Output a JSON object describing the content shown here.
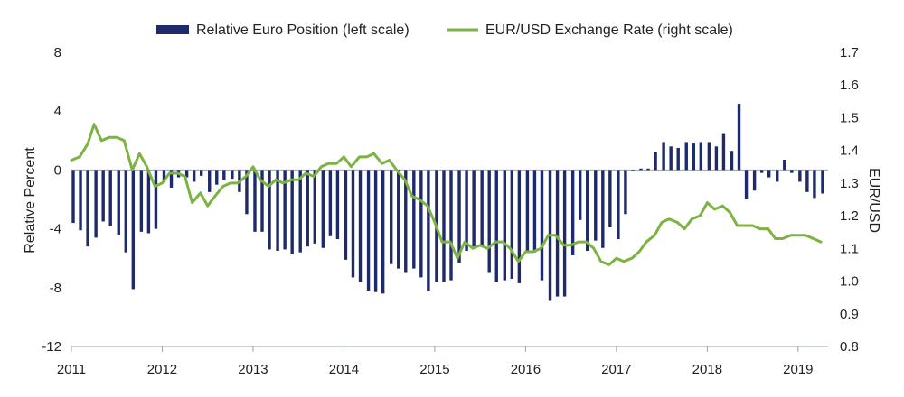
{
  "chart_data": {
    "type": "bar+line",
    "title": "",
    "legend": {
      "placement": "top-center",
      "entries": [
        {
          "label": "Relative Euro Position (left scale)",
          "kind": "bar",
          "color": "#1f2a6b"
        },
        {
          "label": "EUR/USD Exchange Rate (right scale)",
          "kind": "line",
          "color": "#7cb342"
        }
      ]
    },
    "left_axis": {
      "label": "Relative Percent",
      "ylim": [
        -12,
        8
      ],
      "ticks": [
        8,
        4,
        0,
        -4,
        -8,
        -12
      ],
      "tick_labels": [
        "8",
        "4",
        "0",
        "-4",
        "-8",
        "-12"
      ]
    },
    "right_axis": {
      "label": "EUR/USD",
      "ylim": [
        0.8,
        1.7
      ],
      "ticks": [
        1.7,
        1.6,
        1.5,
        1.4,
        1.3,
        1.2,
        1.1,
        1.0,
        0.9,
        0.8
      ],
      "tick_labels": [
        "1.7",
        "1.6",
        "1.5",
        "1.4",
        "1.3",
        "1.2",
        "1.1",
        "1.0",
        "0.9",
        "0.8"
      ]
    },
    "x_axis": {
      "label": "",
      "xlim": [
        2011.0,
        2019.33
      ],
      "ticks": [
        2011,
        2012,
        2013,
        2014,
        2015,
        2016,
        2017,
        2018,
        2019
      ],
      "tick_labels": [
        "2011",
        "2012",
        "2013",
        "2014",
        "2015",
        "2016",
        "2017",
        "2018",
        "2019"
      ]
    },
    "grid": false,
    "series": [
      {
        "name": "Relative Euro Position (left scale)",
        "type": "bar",
        "axis": "left",
        "color": "#1f2a6b",
        "x": [
          2011.02,
          2011.1,
          2011.18,
          2011.27,
          2011.35,
          2011.43,
          2011.52,
          2011.6,
          2011.68,
          2011.77,
          2011.85,
          2011.93,
          2012.02,
          2012.1,
          2012.18,
          2012.27,
          2012.35,
          2012.43,
          2012.52,
          2012.6,
          2012.68,
          2012.77,
          2012.85,
          2012.93,
          2013.02,
          2013.1,
          2013.18,
          2013.27,
          2013.35,
          2013.43,
          2013.52,
          2013.6,
          2013.68,
          2013.77,
          2013.85,
          2013.93,
          2014.02,
          2014.1,
          2014.18,
          2014.27,
          2014.35,
          2014.43,
          2014.52,
          2014.6,
          2014.68,
          2014.77,
          2014.85,
          2014.93,
          2015.02,
          2015.1,
          2015.18,
          2015.27,
          2015.35,
          2015.43,
          2015.52,
          2015.6,
          2015.68,
          2015.77,
          2015.85,
          2015.93,
          2016.02,
          2016.1,
          2016.18,
          2016.27,
          2016.35,
          2016.43,
          2016.52,
          2016.6,
          2016.68,
          2016.77,
          2016.85,
          2016.93,
          2017.02,
          2017.1,
          2017.18,
          2017.27,
          2017.35,
          2017.43,
          2017.52,
          2017.6,
          2017.68,
          2017.77,
          2017.85,
          2017.93,
          2018.02,
          2018.1,
          2018.18,
          2018.27,
          2018.35,
          2018.43,
          2018.52,
          2018.6,
          2018.68,
          2018.77,
          2018.85,
          2018.93,
          2019.02,
          2019.1,
          2019.18,
          2019.27
        ],
        "values": [
          -3.6,
          -4.1,
          -5.2,
          -4.6,
          -3.5,
          -3.8,
          -4.4,
          -5.6,
          -8.1,
          -4.2,
          -4.3,
          -4.0,
          -0.8,
          -1.2,
          -0.5,
          -0.5,
          -0.8,
          -0.4,
          -1.5,
          -1.0,
          -0.7,
          -0.6,
          -1.5,
          -3.0,
          -4.2,
          -4.2,
          -5.4,
          -5.5,
          -5.4,
          -5.7,
          -5.6,
          -5.2,
          -5.0,
          -5.3,
          -4.5,
          -4.7,
          -6.1,
          -7.3,
          -7.6,
          -8.2,
          -8.3,
          -8.4,
          -6.4,
          -6.7,
          -7.0,
          -6.7,
          -7.3,
          -8.2,
          -7.6,
          -7.6,
          -7.5,
          -6.3,
          -5.5,
          -5.2,
          -5.1,
          -7.0,
          -7.6,
          -7.5,
          -7.4,
          -7.7,
          -5.5,
          -5.6,
          -7.5,
          -8.9,
          -8.6,
          -8.6,
          -5.8,
          -3.4,
          -5.5,
          -4.8,
          -5.3,
          -3.9,
          -4.7,
          -3.0,
          -0.1,
          0.1,
          0.1,
          1.2,
          1.9,
          1.6,
          1.5,
          1.9,
          1.8,
          1.9,
          1.9,
          1.6,
          2.5,
          1.3,
          4.5,
          -2.0,
          -1.4,
          -0.2,
          -0.5,
          -0.8,
          0.7,
          -0.2,
          -0.8,
          -1.5,
          -1.9,
          -1.6
        ]
      },
      {
        "name": "EUR/USD Exchange Rate (right scale)",
        "type": "line",
        "axis": "right",
        "color": "#7cb342",
        "x": [
          2011.0,
          2011.09,
          2011.18,
          2011.25,
          2011.33,
          2011.42,
          2011.5,
          2011.58,
          2011.67,
          2011.75,
          2011.83,
          2011.92,
          2012.0,
          2012.08,
          2012.17,
          2012.25,
          2012.33,
          2012.42,
          2012.5,
          2012.58,
          2012.67,
          2012.75,
          2012.83,
          2012.92,
          2013.0,
          2013.08,
          2013.17,
          2013.25,
          2013.33,
          2013.42,
          2013.5,
          2013.58,
          2013.67,
          2013.75,
          2013.83,
          2013.92,
          2014.0,
          2014.08,
          2014.17,
          2014.25,
          2014.33,
          2014.42,
          2014.5,
          2014.58,
          2014.67,
          2014.75,
          2014.83,
          2014.92,
          2015.0,
          2015.08,
          2015.17,
          2015.25,
          2015.33,
          2015.42,
          2015.5,
          2015.58,
          2015.67,
          2015.75,
          2015.83,
          2015.92,
          2016.0,
          2016.08,
          2016.17,
          2016.25,
          2016.33,
          2016.42,
          2016.5,
          2016.58,
          2016.67,
          2016.75,
          2016.83,
          2016.92,
          2017.0,
          2017.08,
          2017.17,
          2017.25,
          2017.33,
          2017.42,
          2017.5,
          2017.58,
          2017.67,
          2017.75,
          2017.83,
          2017.92,
          2018.0,
          2018.08,
          2018.17,
          2018.25,
          2018.33,
          2018.42,
          2018.5,
          2018.58,
          2018.67,
          2018.75,
          2018.83,
          2018.92,
          2019.0,
          2019.08,
          2019.17,
          2019.25
        ],
        "values": [
          1.37,
          1.38,
          1.42,
          1.48,
          1.43,
          1.44,
          1.44,
          1.43,
          1.34,
          1.39,
          1.35,
          1.29,
          1.3,
          1.33,
          1.33,
          1.32,
          1.24,
          1.27,
          1.23,
          1.26,
          1.29,
          1.3,
          1.3,
          1.32,
          1.35,
          1.31,
          1.29,
          1.31,
          1.3,
          1.31,
          1.31,
          1.33,
          1.32,
          1.35,
          1.36,
          1.36,
          1.38,
          1.35,
          1.38,
          1.38,
          1.39,
          1.36,
          1.37,
          1.34,
          1.31,
          1.26,
          1.25,
          1.23,
          1.18,
          1.12,
          1.12,
          1.07,
          1.12,
          1.1,
          1.11,
          1.1,
          1.12,
          1.12,
          1.1,
          1.06,
          1.09,
          1.09,
          1.1,
          1.14,
          1.14,
          1.11,
          1.11,
          1.12,
          1.12,
          1.1,
          1.06,
          1.05,
          1.07,
          1.06,
          1.07,
          1.09,
          1.12,
          1.14,
          1.18,
          1.19,
          1.18,
          1.16,
          1.19,
          1.2,
          1.24,
          1.22,
          1.23,
          1.21,
          1.17,
          1.17,
          1.17,
          1.16,
          1.16,
          1.13,
          1.13,
          1.14,
          1.14,
          1.14,
          1.13,
          1.12
        ]
      }
    ]
  }
}
